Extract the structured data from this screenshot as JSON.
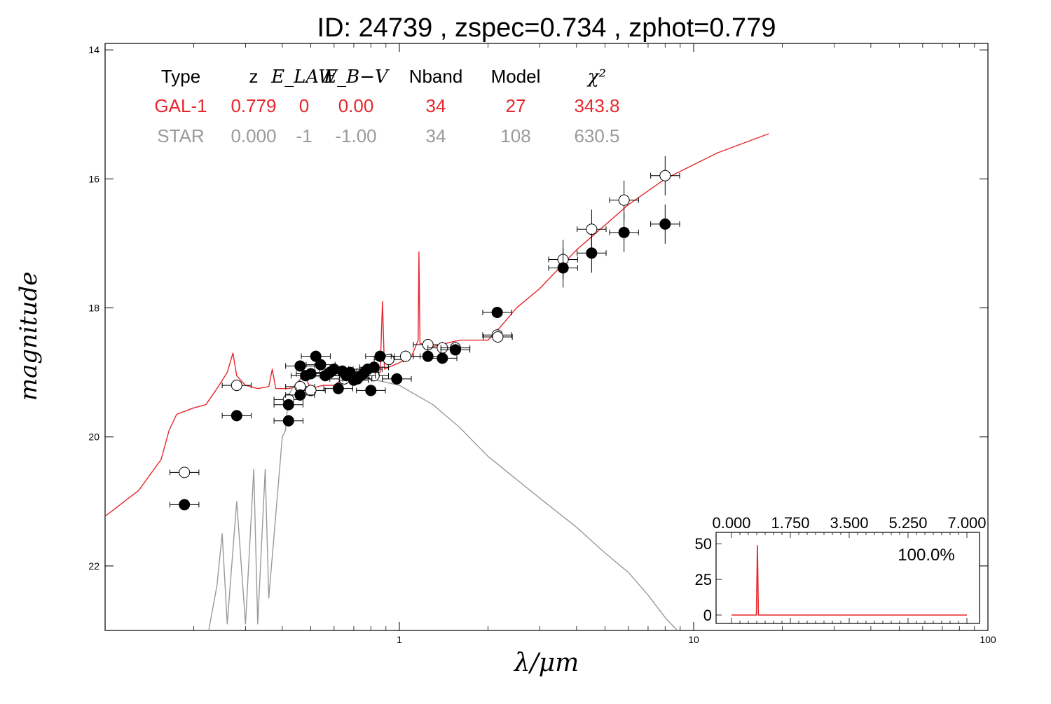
{
  "title": "ID:  24739 , zspec=0.734 , zphot=0.779",
  "colors": {
    "galaxy": "#e8262c",
    "star": "#9a9a9a",
    "axis": "#000000"
  },
  "chart_data": {
    "type": "scatter",
    "xscale": "log",
    "xlim": [
      0.1,
      100
    ],
    "ylim": [
      23,
      13.9
    ],
    "y_inverted": true,
    "xlabel": "λ/μm",
    "ylabel": "magnitude",
    "x_ticks": [
      "1",
      "10",
      "100"
    ],
    "y_ticks": [
      "14",
      "16",
      "18",
      "20",
      "22"
    ],
    "legend_table": {
      "headers": [
        "Type",
        "z",
        "E_LAW",
        "E_B−V",
        "Nband",
        "Model",
        "χ²"
      ],
      "rows": [
        {
          "name": "GAL-1",
          "color": "galaxy",
          "cells": [
            "GAL-1",
            "0.779",
            "0",
            "0.00",
            "34",
            "27",
            "343.8"
          ]
        },
        {
          "name": "STAR",
          "color": "star",
          "cells": [
            "STAR",
            "0.000",
            "-1",
            "-1.00",
            "34",
            "108",
            "630.5"
          ]
        }
      ]
    },
    "series": [
      {
        "kind": "line",
        "color": "galaxy",
        "points": [
          [
            0.1,
            21.23
          ],
          [
            0.13,
            20.83
          ],
          [
            0.155,
            20.35
          ],
          [
            0.165,
            19.9
          ],
          [
            0.175,
            19.65
          ],
          [
            0.2,
            19.55
          ],
          [
            0.22,
            19.5
          ],
          [
            0.24,
            19.25
          ],
          [
            0.26,
            19.0
          ],
          [
            0.272,
            18.7
          ],
          [
            0.28,
            19.05
          ],
          [
            0.3,
            19.2
          ],
          [
            0.33,
            19.25
          ],
          [
            0.36,
            19.22
          ],
          [
            0.37,
            18.95
          ],
          [
            0.38,
            19.25
          ],
          [
            0.42,
            19.25
          ],
          [
            0.45,
            19.22
          ],
          [
            0.47,
            19.0
          ],
          [
            0.5,
            19.25
          ],
          [
            0.55,
            19.2
          ],
          [
            0.6,
            19.2
          ],
          [
            0.65,
            19.08
          ],
          [
            0.7,
            19.15
          ],
          [
            0.75,
            19.05
          ],
          [
            0.8,
            19.1
          ],
          [
            0.86,
            19.0
          ],
          [
            0.876,
            17.9
          ],
          [
            0.89,
            18.95
          ],
          [
            1.0,
            18.85
          ],
          [
            1.1,
            18.75
          ],
          [
            1.158,
            18.5
          ],
          [
            1.165,
            17.13
          ],
          [
            1.175,
            18.55
          ],
          [
            1.3,
            18.6
          ],
          [
            1.6,
            18.5
          ],
          [
            2.0,
            18.5
          ],
          [
            2.2,
            18.3
          ],
          [
            2.5,
            18.0
          ],
          [
            3.0,
            17.7
          ],
          [
            4.0,
            17.1
          ],
          [
            6.0,
            16.4
          ],
          [
            8.0,
            16.0
          ],
          [
            12.0,
            15.6
          ],
          [
            18.0,
            15.3
          ]
        ]
      },
      {
        "kind": "line",
        "color": "star",
        "points": [
          [
            0.225,
            23.0
          ],
          [
            0.24,
            22.3
          ],
          [
            0.25,
            21.5
          ],
          [
            0.26,
            22.9
          ],
          [
            0.28,
            21.0
          ],
          [
            0.3,
            22.9
          ],
          [
            0.32,
            20.5
          ],
          [
            0.33,
            22.9
          ],
          [
            0.35,
            20.5
          ],
          [
            0.36,
            22.5
          ],
          [
            0.4,
            20.0
          ],
          [
            0.41,
            19.9
          ],
          [
            0.42,
            19.35
          ],
          [
            0.44,
            19.2
          ],
          [
            0.46,
            19.1
          ],
          [
            0.5,
            19.08
          ],
          [
            0.55,
            19.05
          ],
          [
            0.6,
            19.05
          ],
          [
            0.7,
            19.06
          ],
          [
            0.8,
            19.1
          ],
          [
            1.0,
            19.2
          ],
          [
            1.3,
            19.5
          ],
          [
            1.6,
            19.85
          ],
          [
            2.0,
            20.3
          ],
          [
            3.0,
            20.95
          ],
          [
            4.0,
            21.4
          ],
          [
            5.0,
            21.8
          ],
          [
            6.0,
            22.1
          ],
          [
            7.0,
            22.45
          ],
          [
            8.0,
            22.8
          ],
          [
            8.8,
            23.0
          ]
        ]
      }
    ],
    "points_model": [
      [
        0.186,
        20.55
      ],
      [
        0.28,
        19.2
      ],
      [
        0.42,
        19.42
      ],
      [
        0.46,
        19.22
      ],
      [
        0.5,
        19.28
      ],
      [
        0.58,
        19.0
      ],
      [
        0.65,
        19.1
      ],
      [
        0.72,
        19.08
      ],
      [
        0.82,
        19.05
      ],
      [
        0.92,
        18.8
      ],
      [
        1.05,
        18.75
      ],
      [
        1.25,
        18.57
      ],
      [
        1.4,
        18.62
      ],
      [
        1.55,
        18.62
      ],
      [
        2.15,
        18.42
      ],
      [
        2.16,
        18.45
      ],
      [
        3.6,
        17.25
      ],
      [
        4.5,
        16.78
      ],
      [
        5.8,
        16.33
      ],
      [
        8.0,
        15.95
      ]
    ],
    "points_observed": [
      [
        0.186,
        21.05
      ],
      [
        0.28,
        19.67
      ],
      [
        0.42,
        19.5
      ],
      [
        0.42,
        19.75
      ],
      [
        0.46,
        18.9
      ],
      [
        0.46,
        19.35
      ],
      [
        0.48,
        19.05
      ],
      [
        0.5,
        19.02
      ],
      [
        0.52,
        18.75
      ],
      [
        0.54,
        18.88
      ],
      [
        0.56,
        19.05
      ],
      [
        0.58,
        19.0
      ],
      [
        0.6,
        18.95
      ],
      [
        0.62,
        19.25
      ],
      [
        0.64,
        18.98
      ],
      [
        0.66,
        19.05
      ],
      [
        0.68,
        19.0
      ],
      [
        0.7,
        19.12
      ],
      [
        0.72,
        19.1
      ],
      [
        0.74,
        19.05
      ],
      [
        0.76,
        19.0
      ],
      [
        0.78,
        18.95
      ],
      [
        0.8,
        19.28
      ],
      [
        0.82,
        18.92
      ],
      [
        0.86,
        18.75
      ],
      [
        0.98,
        19.1
      ],
      [
        1.25,
        18.75
      ],
      [
        1.4,
        18.78
      ],
      [
        1.55,
        18.65
      ],
      [
        2.15,
        18.07
      ],
      [
        3.6,
        17.38
      ],
      [
        4.5,
        17.15
      ],
      [
        5.8,
        16.83
      ],
      [
        8.0,
        16.7
      ]
    ],
    "inset": {
      "x_ticks": [
        "0.000",
        "1.750",
        "3.500",
        "5.250",
        "7.000"
      ],
      "y_ticks": [
        "50",
        "25",
        "0"
      ],
      "xlim": [
        0,
        7
      ],
      "ylim": [
        0,
        57
      ],
      "label": "100.0%",
      "color": "galaxy",
      "points": [
        [
          0,
          0
        ],
        [
          0.74,
          0
        ],
        [
          0.77,
          49
        ],
        [
          0.8,
          0
        ],
        [
          7,
          0
        ]
      ]
    }
  }
}
